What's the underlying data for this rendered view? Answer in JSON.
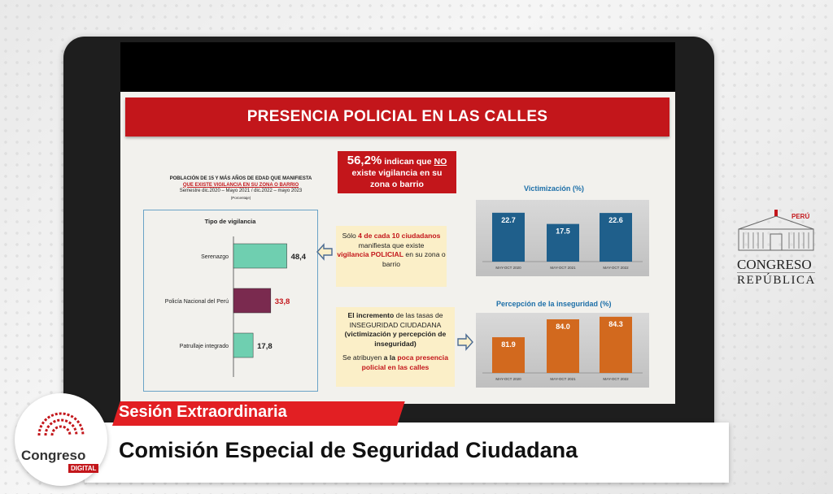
{
  "slide": {
    "title": "PRESENCIA POLICIAL EN LAS CALLES",
    "survey_title_l1": "POBLACIÓN DE 15 Y MÁS AÑOS DE EDAD QUE MANIFIESTA",
    "survey_title_l2": "QUE EXISTE VIGILANCIA EN SU ZONA O BARRIO",
    "survey_title_l3": "Semestre dic.2020 – Mayo 2021 / dic.2022 – mayo 2023",
    "survey_title_l4": "(Porcentaje)",
    "red_box": {
      "big": "56,2%",
      "part1": "indican que",
      "no": "NO",
      "part2": "existe vigilancia en su zona o barrio"
    },
    "note1": {
      "pre": "Sólo",
      "highlight": "4 de cada 10 ciudadanos",
      "mid": "manifiesta que existe",
      "red": "vigilancia POLICIAL",
      "post": "en su zona o barrio"
    },
    "note2": {
      "b1": "El incremento",
      "t1": "de las tasas de INSEGURIDAD CIUDADANA",
      "b2": "(victimización y percepción de inseguridad)",
      "t2": "Se atribuyen",
      "b3": "a la",
      "red": "poca presencia policial en las calles"
    }
  },
  "chart_data": [
    {
      "type": "bar",
      "orientation": "horizontal",
      "title": "Tipo de vigilancia",
      "categories": [
        "Serenazgo",
        "Policía Nacional del Perú",
        "Patrullaje integrado"
      ],
      "values": [
        48.4,
        33.8,
        17.8
      ],
      "value_labels": [
        "48,4",
        "33,8",
        "17,8"
      ],
      "colors": [
        "#6fcfb0",
        "#7a2a4f",
        "#6fcfb0"
      ],
      "label_colors": [
        "#222222",
        "#c3161b",
        "#222222"
      ],
      "xlim": [
        0,
        60
      ]
    },
    {
      "type": "bar",
      "title": "Victimización (%)",
      "categories": [
        "MAY-OCT 2020",
        "MAY-OCT 2021",
        "MAY-OCT 2022"
      ],
      "values": [
        22.7,
        17.5,
        22.6
      ],
      "value_labels": [
        "22.7",
        "17.5",
        "22.6"
      ],
      "color": "#1f5f8b",
      "ylim": [
        0,
        25
      ]
    },
    {
      "type": "bar",
      "title": "Percepción de la inseguridad  (%)",
      "categories": [
        "MAY-OCT 2020",
        "MAY-OCT 2021",
        "MAY-OCT 2022"
      ],
      "values": [
        81.9,
        84.0,
        84.3
      ],
      "value_labels": [
        "81.9",
        "84.0",
        "84.3"
      ],
      "color": "#d2691e",
      "ylim": [
        80,
        85
      ]
    }
  ],
  "lower_third": {
    "session": "Sesión Extraordinaria",
    "commission": "Comisión Especial de Seguridad Ciudadana"
  },
  "logo": {
    "word": "Congreso",
    "tag": "DIGITAL"
  },
  "congreso_logo": {
    "country": "PERÚ",
    "line1": "CONGRESO",
    "line2": "REPÚBLICA"
  }
}
